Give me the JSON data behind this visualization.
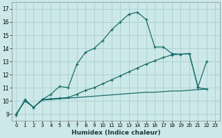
{
  "xlabel": "Humidex (Indice chaleur)",
  "xlim": [
    -0.5,
    23.5
  ],
  "ylim": [
    8.5,
    17.5
  ],
  "xticks": [
    0,
    1,
    2,
    3,
    4,
    5,
    6,
    7,
    8,
    9,
    10,
    11,
    12,
    13,
    14,
    15,
    16,
    17,
    18,
    19,
    20,
    21,
    22,
    23
  ],
  "yticks": [
    9,
    10,
    11,
    12,
    13,
    14,
    15,
    16,
    17
  ],
  "bg_color": "#cce8e8",
  "grid_color": "#aacece",
  "line_color": "#1a6b6b",
  "curve1_x": [
    0,
    1,
    2,
    3,
    4,
    5,
    6,
    7,
    8,
    9,
    10,
    11,
    12,
    13,
    14,
    15,
    16,
    17,
    18,
    19,
    20,
    21,
    22
  ],
  "curve1_y": [
    8.9,
    10.1,
    9.5,
    10.1,
    10.5,
    11.1,
    11.0,
    12.8,
    13.7,
    14.0,
    14.6,
    15.4,
    16.0,
    16.6,
    16.75,
    16.2,
    14.1,
    14.1,
    13.6,
    13.55,
    13.6,
    11.05,
    13.0
  ],
  "curve2_x": [
    0,
    1,
    2,
    3,
    4,
    5,
    6,
    7,
    8,
    9,
    10,
    11,
    12,
    13,
    14,
    15,
    16,
    17,
    18,
    19,
    20,
    21,
    22
  ],
  "curve2_y": [
    9.0,
    10.0,
    9.5,
    10.1,
    10.15,
    10.2,
    10.25,
    10.5,
    10.8,
    11.0,
    11.3,
    11.6,
    11.9,
    12.2,
    12.5,
    12.8,
    13.05,
    13.3,
    13.5,
    13.55,
    13.6,
    11.0,
    10.9
  ],
  "curve3_x": [
    0,
    1,
    2,
    3,
    4,
    5,
    6,
    7,
    8,
    9,
    10,
    11,
    12,
    13,
    14,
    15,
    16,
    17,
    18,
    19,
    20,
    21,
    22
  ],
  "curve3_y": [
    9.0,
    10.0,
    9.5,
    10.05,
    10.1,
    10.15,
    10.2,
    10.25,
    10.3,
    10.35,
    10.4,
    10.45,
    10.5,
    10.55,
    10.6,
    10.65,
    10.65,
    10.7,
    10.75,
    10.75,
    10.8,
    10.85,
    10.9
  ]
}
